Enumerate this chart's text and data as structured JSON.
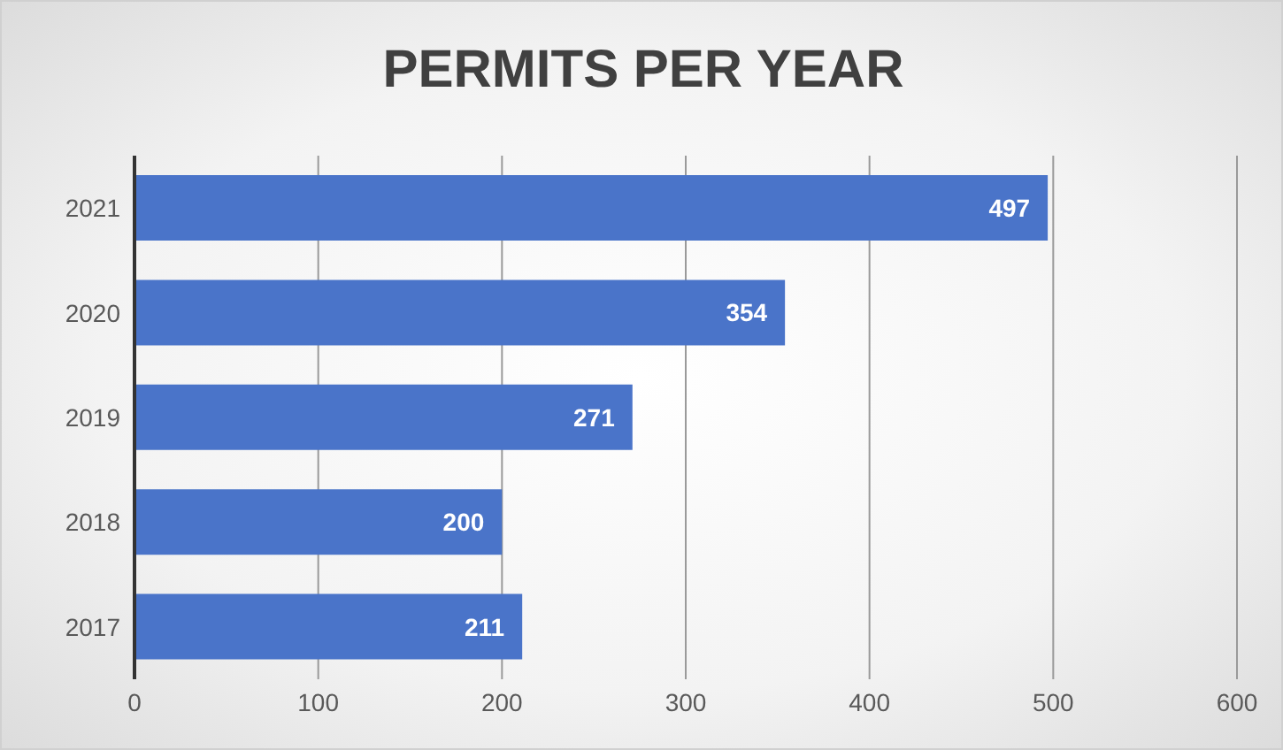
{
  "chart_data": {
    "type": "bar",
    "title": "PERMITS PER YEAR",
    "orientation": "horizontal",
    "categories": [
      "2021",
      "2020",
      "2019",
      "2018",
      "2017"
    ],
    "values": [
      497,
      354,
      271,
      200,
      211
    ],
    "color": "#4a74c9",
    "xlim": [
      0,
      600
    ],
    "xticks": [
      0,
      100,
      200,
      300,
      400,
      500,
      600
    ],
    "grid": "x",
    "data_labels": true
  }
}
